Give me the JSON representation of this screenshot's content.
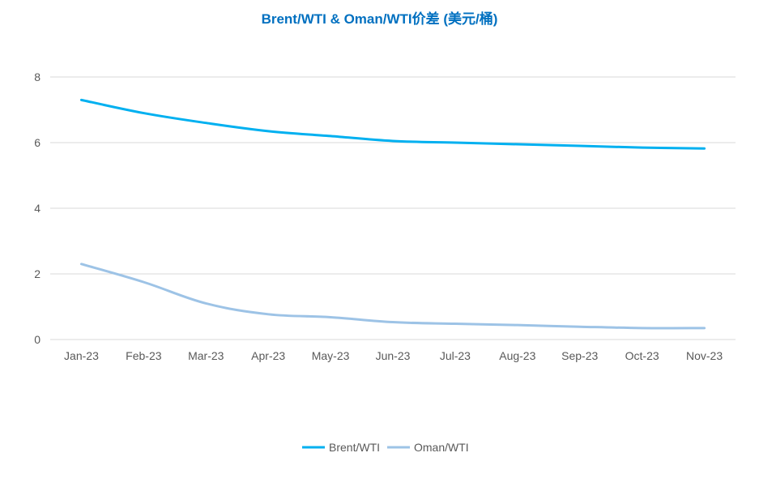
{
  "chart_data": {
    "type": "line",
    "title": "Brent/WTI & Oman/WTI价差 (美元/桶)",
    "categories": [
      "Jan-23",
      "Feb-23",
      "Mar-23",
      "Apr-23",
      "May-23",
      "Jun-23",
      "Jul-23",
      "Aug-23",
      "Sep-23",
      "Oct-23",
      "Nov-23"
    ],
    "ylim": [
      0,
      8
    ],
    "yticks": [
      0,
      2,
      4,
      6,
      8
    ],
    "grid": true,
    "legend_position": "bottom",
    "series": [
      {
        "name": "Brent/WTI",
        "color": "#00b0f0",
        "values": [
          7.3,
          6.9,
          6.6,
          6.35,
          6.2,
          6.05,
          6.0,
          5.95,
          5.9,
          5.85,
          5.82
        ]
      },
      {
        "name": "Oman/WTI",
        "color": "#9dc3e6",
        "values": [
          2.3,
          1.75,
          1.1,
          0.77,
          0.68,
          0.53,
          0.48,
          0.44,
          0.39,
          0.35,
          0.35
        ]
      }
    ]
  }
}
